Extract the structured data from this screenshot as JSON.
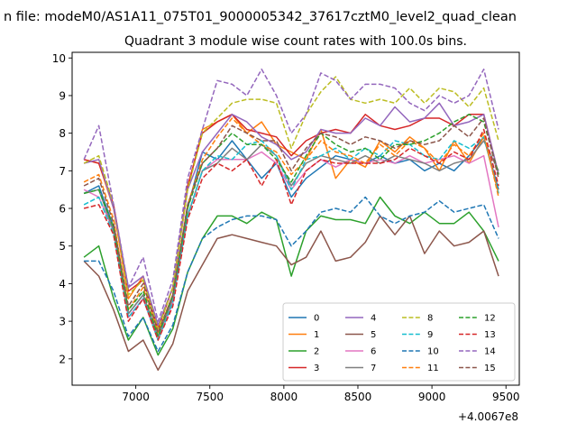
{
  "chart_data": {
    "type": "line",
    "suptitle": "n file: modeM0/AS1A11_075T01_9000005342_37617cztM0_level2_quad_clean",
    "title": "Quadrant 3 module wise count rates with 100.0s bins.",
    "xlabel": "",
    "ylabel": "",
    "x_offset_label": "+4.0067e8",
    "xlim": [
      6570,
      9590
    ],
    "ylim": [
      1.3,
      10.15
    ],
    "xticks": [
      7000,
      7500,
      8000,
      8500,
      9000,
      9500
    ],
    "yticks": [
      2,
      3,
      4,
      5,
      6,
      7,
      8,
      9,
      10
    ],
    "grid": false,
    "legend_position": "lower-right",
    "legend_columns": 4,
    "x": [
      6650,
      6750,
      6850,
      6950,
      7050,
      7150,
      7250,
      7350,
      7450,
      7550,
      7650,
      7750,
      7850,
      7950,
      8050,
      8150,
      8250,
      8350,
      8450,
      8550,
      8650,
      8750,
      8850,
      8950,
      9050,
      9150,
      9250,
      9350,
      9450
    ],
    "series": [
      {
        "name": "0",
        "color": "#1f77b4",
        "dash": "solid",
        "values": [
          6.4,
          6.6,
          5.5,
          3.2,
          3.7,
          2.6,
          3.6,
          6.0,
          7.5,
          7.3,
          7.8,
          7.3,
          6.8,
          7.2,
          6.3,
          6.8,
          7.1,
          7.4,
          7.3,
          7.2,
          7.4,
          7.2,
          7.3,
          7.0,
          7.2,
          7.0,
          7.4,
          7.9,
          6.5
        ]
      },
      {
        "name": "1",
        "color": "#ff7f0e",
        "dash": "solid",
        "values": [
          7.3,
          7.2,
          6.0,
          3.6,
          4.2,
          2.8,
          3.9,
          6.5,
          8.1,
          8.3,
          8.5,
          8.0,
          8.3,
          7.7,
          7.5,
          7.3,
          8.1,
          6.8,
          7.3,
          7.1,
          7.8,
          7.5,
          7.9,
          7.6,
          7.0,
          7.8,
          7.2,
          7.9,
          6.4
        ]
      },
      {
        "name": "2",
        "color": "#2ca02c",
        "dash": "solid",
        "values": [
          4.7,
          5.0,
          3.6,
          2.5,
          3.1,
          2.1,
          2.8,
          4.3,
          5.2,
          5.8,
          5.8,
          5.6,
          5.9,
          5.7,
          4.2,
          5.4,
          5.8,
          5.7,
          5.7,
          5.6,
          6.3,
          5.8,
          5.6,
          5.9,
          5.6,
          5.6,
          5.9,
          5.4,
          4.6
        ]
      },
      {
        "name": "3",
        "color": "#d62728",
        "dash": "solid",
        "values": [
          7.3,
          7.2,
          6.1,
          3.8,
          4.1,
          2.8,
          3.9,
          6.6,
          8.0,
          8.3,
          8.5,
          8.1,
          8.0,
          7.9,
          7.4,
          7.8,
          8.0,
          8.1,
          8.0,
          8.5,
          8.2,
          8.1,
          8.2,
          8.4,
          8.4,
          8.2,
          8.5,
          8.5,
          6.9
        ]
      },
      {
        "name": "4",
        "color": "#9467bd",
        "dash": "solid",
        "values": [
          7.2,
          7.3,
          6.0,
          3.9,
          4.2,
          2.9,
          3.9,
          6.5,
          7.5,
          8.0,
          8.5,
          8.3,
          7.9,
          7.7,
          7.3,
          7.5,
          8.1,
          8.0,
          8.0,
          8.4,
          8.2,
          8.7,
          8.3,
          8.4,
          8.8,
          8.2,
          8.3,
          8.5,
          6.9
        ]
      },
      {
        "name": "5",
        "color": "#8c564b",
        "dash": "solid",
        "values": [
          4.6,
          4.2,
          3.3,
          2.2,
          2.5,
          1.7,
          2.4,
          3.8,
          4.5,
          5.2,
          5.3,
          5.2,
          5.1,
          5.0,
          4.5,
          4.7,
          5.4,
          4.6,
          4.7,
          5.1,
          5.8,
          5.3,
          5.8,
          4.8,
          5.4,
          5.0,
          5.1,
          5.4,
          4.2
        ]
      },
      {
        "name": "6",
        "color": "#e377c2",
        "dash": "solid",
        "values": [
          6.5,
          6.3,
          5.4,
          3.1,
          3.6,
          2.5,
          3.5,
          5.8,
          7.0,
          7.3,
          7.3,
          7.3,
          7.5,
          7.2,
          6.5,
          7.0,
          7.3,
          7.1,
          7.3,
          7.2,
          7.3,
          7.2,
          7.4,
          7.2,
          7.3,
          7.4,
          7.2,
          7.4,
          5.5
        ]
      },
      {
        "name": "7",
        "color": "#7f7f7f",
        "dash": "solid",
        "values": [
          6.4,
          6.5,
          5.4,
          3.2,
          3.7,
          2.6,
          3.6,
          5.8,
          7.0,
          7.2,
          7.6,
          7.3,
          7.7,
          7.4,
          6.6,
          7.2,
          7.4,
          7.3,
          7.2,
          7.4,
          7.2,
          7.4,
          7.3,
          7.2,
          7.0,
          7.2,
          7.3,
          7.8,
          7.0
        ]
      },
      {
        "name": "8",
        "color": "#bcbd22",
        "dash": "dashed",
        "values": [
          7.2,
          7.4,
          6.1,
          3.7,
          4.1,
          2.8,
          3.9,
          6.5,
          8.0,
          8.4,
          8.8,
          8.9,
          8.9,
          8.8,
          7.6,
          8.5,
          9.1,
          9.5,
          8.9,
          8.8,
          8.9,
          8.8,
          9.2,
          8.8,
          9.2,
          9.1,
          8.7,
          9.2,
          7.8
        ]
      },
      {
        "name": "9",
        "color": "#17becf",
        "dash": "dashed",
        "values": [
          6.1,
          6.3,
          5.3,
          3.1,
          3.6,
          2.5,
          3.5,
          5.8,
          7.0,
          7.4,
          7.3,
          7.7,
          7.8,
          7.4,
          6.5,
          7.3,
          7.4,
          7.6,
          7.3,
          7.6,
          7.4,
          7.8,
          7.7,
          7.4,
          7.3,
          7.8,
          7.6,
          7.9,
          6.4
        ]
      },
      {
        "name": "10",
        "color": "#1f77b4",
        "dash": "dashed",
        "values": [
          4.6,
          4.6,
          3.8,
          2.6,
          3.1,
          2.2,
          2.9,
          4.3,
          5.2,
          5.5,
          5.7,
          5.8,
          5.8,
          5.7,
          5.0,
          5.4,
          5.9,
          6.0,
          5.9,
          6.3,
          5.8,
          5.6,
          5.8,
          5.9,
          6.2,
          5.9,
          6.0,
          6.1,
          5.2
        ]
      },
      {
        "name": "11",
        "color": "#ff7f0e",
        "dash": "dashed",
        "values": [
          6.7,
          6.9,
          5.7,
          3.3,
          3.9,
          2.7,
          3.7,
          6.1,
          7.3,
          7.9,
          8.4,
          8.0,
          7.7,
          7.5,
          6.9,
          7.3,
          7.8,
          7.5,
          7.4,
          7.2,
          7.7,
          7.4,
          7.8,
          7.6,
          7.2,
          7.7,
          7.4,
          8.0,
          6.3
        ]
      },
      {
        "name": "12",
        "color": "#2ca02c",
        "dash": "dashed",
        "values": [
          6.4,
          6.5,
          5.5,
          3.3,
          3.8,
          2.6,
          3.7,
          6.0,
          7.2,
          7.6,
          8.0,
          7.7,
          7.7,
          7.3,
          6.7,
          7.4,
          8.0,
          7.7,
          7.5,
          7.6,
          7.3,
          7.7,
          7.7,
          7.8,
          8.0,
          8.3,
          8.5,
          8.3,
          6.9
        ]
      },
      {
        "name": "13",
        "color": "#d62728",
        "dash": "dashed",
        "values": [
          6.0,
          6.1,
          5.3,
          3.0,
          3.6,
          2.5,
          3.4,
          5.7,
          6.8,
          7.2,
          7.0,
          7.3,
          6.6,
          7.3,
          6.1,
          7.0,
          7.3,
          7.2,
          7.2,
          7.2,
          7.2,
          7.3,
          7.6,
          7.4,
          7.2,
          7.5,
          7.3,
          8.1,
          6.6
        ]
      },
      {
        "name": "14",
        "color": "#9467bd",
        "dash": "dashed",
        "values": [
          7.3,
          8.2,
          6.1,
          3.9,
          4.7,
          3.0,
          4.1,
          6.8,
          8.1,
          9.4,
          9.3,
          9.0,
          9.7,
          9.0,
          8.0,
          8.5,
          9.6,
          9.4,
          8.9,
          9.3,
          9.3,
          9.2,
          8.8,
          8.6,
          9.0,
          8.8,
          9.0,
          9.7,
          8.1
        ]
      },
      {
        "name": "15",
        "color": "#8c564b",
        "dash": "dashed",
        "values": [
          6.6,
          6.8,
          5.6,
          3.4,
          4.0,
          2.7,
          3.7,
          6.1,
          7.2,
          7.6,
          8.2,
          8.0,
          7.8,
          7.8,
          7.0,
          7.6,
          8.0,
          7.9,
          7.7,
          7.9,
          7.8,
          7.6,
          7.8,
          7.7,
          7.8,
          8.2,
          7.9,
          8.4,
          6.8
        ]
      }
    ]
  }
}
